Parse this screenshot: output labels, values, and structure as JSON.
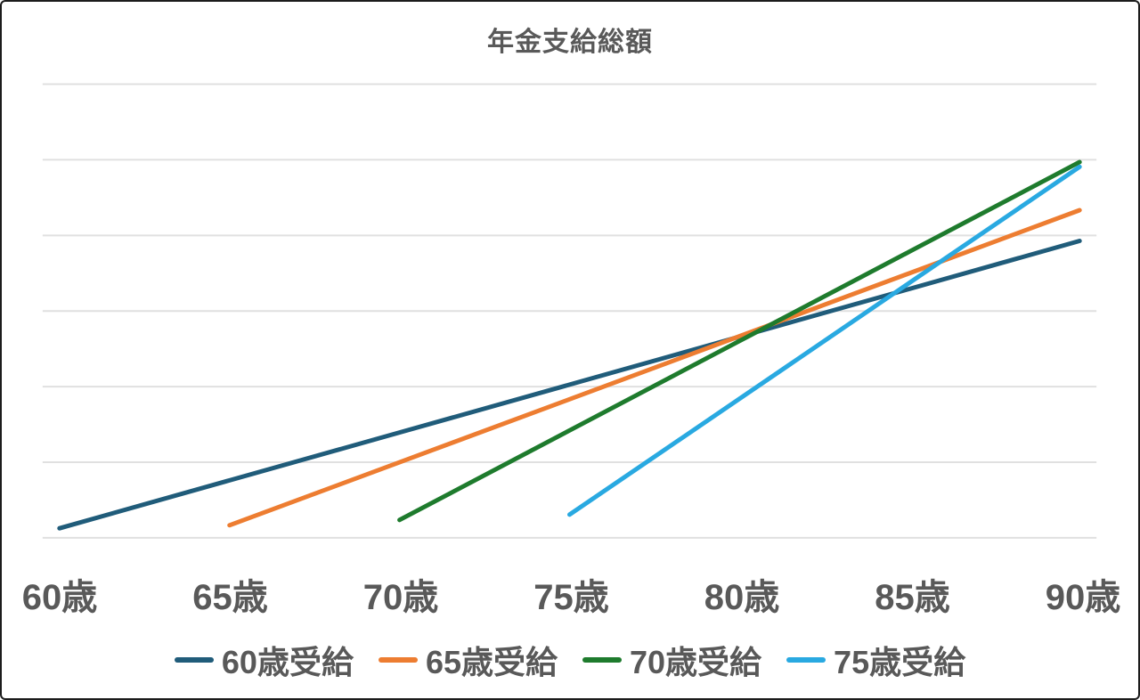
{
  "window": {
    "background": "#ffffff",
    "border_color": "#1c1c1c",
    "text_color": "#595959",
    "gridline_color": "#e0e0e0"
  },
  "chart_data": {
    "type": "line",
    "title": "年金支給総額",
    "x_axis": {
      "tick_labels": [
        "60歳",
        "65歳",
        "70歳",
        "75歳",
        "80歳",
        "85歳",
        "90歳"
      ],
      "ages": [
        60,
        65,
        70,
        75,
        80,
        85,
        90
      ]
    },
    "y_axis": {
      "tick_labels_visible": false,
      "ylim": [
        0,
        3600
      ],
      "gridline_interval": 600
    },
    "grid": true,
    "legend_position": "bottom",
    "series": [
      {
        "name": "60歳受給",
        "color": "#205c7a",
        "start_age": 60,
        "annual_amount_index": 76,
        "values": [
          76,
          456,
          836,
          1216,
          1596,
          1976,
          2356
        ]
      },
      {
        "name": "65歳受給",
        "color": "#ed7d31",
        "start_age": 65,
        "annual_amount_index": 100,
        "values": [
          null,
          100,
          600,
          1100,
          1600,
          2100,
          2600
        ]
      },
      {
        "name": "70歳受給",
        "color": "#1e7b2d",
        "start_age": 70,
        "annual_amount_index": 142,
        "values": [
          null,
          null,
          142,
          852,
          1562,
          2272,
          2982
        ]
      },
      {
        "name": "75歳受給",
        "color": "#29a9e1",
        "start_age": 75,
        "annual_amount_index": 184,
        "values": [
          null,
          null,
          null,
          184,
          1104,
          2024,
          2944
        ]
      }
    ]
  }
}
